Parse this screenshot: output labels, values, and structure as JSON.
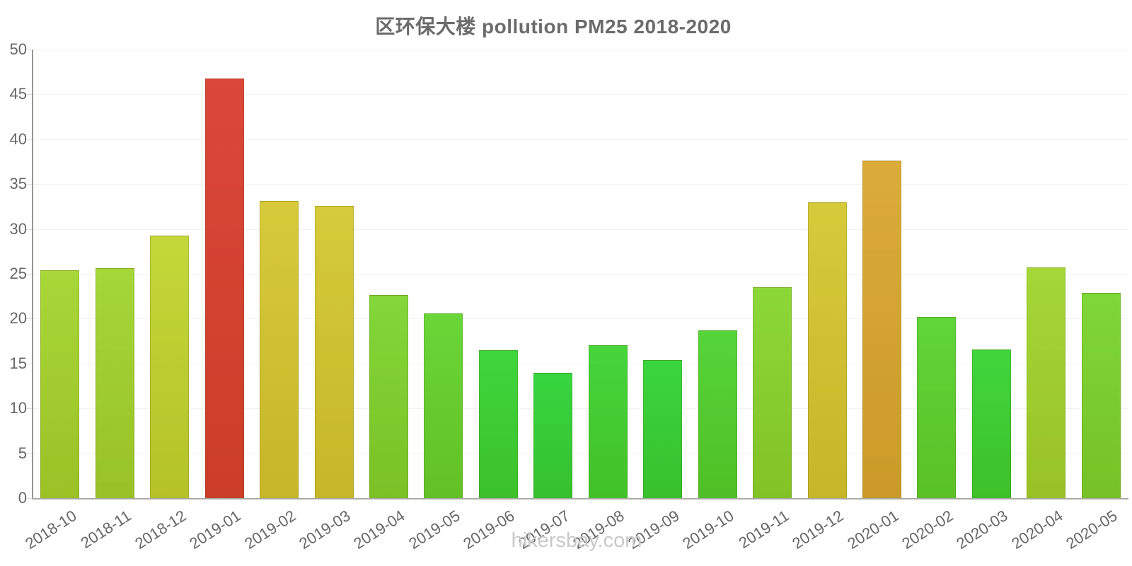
{
  "title": "区环保大楼 pollution PM25 2018-2020",
  "footer": "hikersbay.com",
  "colors": {
    "background": "#ffffff",
    "title_text": "#6b6b6b",
    "axis_text": "#666666",
    "y_axis_line": "#97978f",
    "x_axis_line": "#ababa5",
    "gridline": "#f2f2f2",
    "tick": "#dddddd",
    "footer_text": "#c9c9c9"
  },
  "chart_data": {
    "type": "bar",
    "title": "区环保大楼 pollution PM25 2018-2020",
    "xlabel": "",
    "ylabel": "",
    "ylim": [
      0,
      50
    ],
    "yticks": [
      0,
      5,
      10,
      15,
      20,
      25,
      30,
      35,
      40,
      45,
      50
    ],
    "grid": true,
    "legend": false,
    "footer": "hikersbay.com",
    "categories": [
      "2018-10",
      "2018-11",
      "2018-12",
      "2019-01",
      "2019-02",
      "2019-03",
      "2019-04",
      "2019-05",
      "2019-06",
      "2019-07",
      "2019-08",
      "2019-09",
      "2019-10",
      "2019-11",
      "2019-12",
      "2020-01",
      "2020-02",
      "2020-03",
      "2020-04",
      "2020-05"
    ],
    "values": [
      25.4,
      25.6,
      29.3,
      46.8,
      33.1,
      32.6,
      22.6,
      20.6,
      16.5,
      14.0,
      17.0,
      15.4,
      18.7,
      23.5,
      33.0,
      37.6,
      20.2,
      16.6,
      25.7,
      22.9
    ],
    "bar_colors": [
      "#a2d42c",
      "#9fd42c",
      "#c0d52e",
      "#d93b2e",
      "#d4c72e",
      "#d3c82e",
      "#7bd42c",
      "#60d32c",
      "#33d331",
      "#2bd335",
      "#3ad32f",
      "#2ed333",
      "#4ad22d",
      "#85d52c",
      "#d4c72e",
      "#d9a62e",
      "#56d32c",
      "#34d330",
      "#9fd42c",
      "#77d42c"
    ]
  }
}
